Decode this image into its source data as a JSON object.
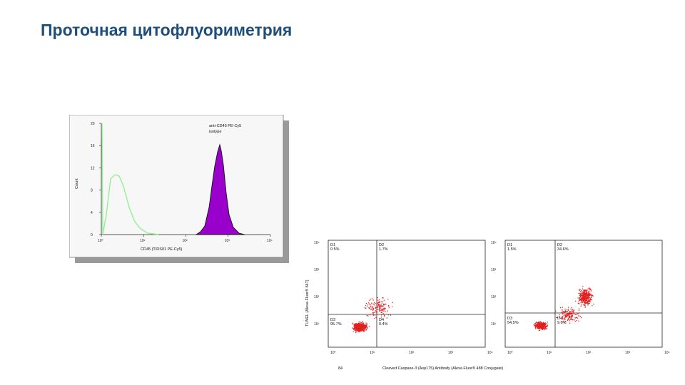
{
  "slide": {
    "title": "Проточная цитофлуориметрия",
    "page_number": "84"
  },
  "histogram": {
    "y_label": "Count",
    "y_ticks": [
      "20",
      "16",
      "12",
      "8",
      "4",
      "0"
    ],
    "x_ticks": [
      "10⁰",
      "10¹",
      "10²",
      "10³",
      "10⁴"
    ],
    "x_label": "CD45 (TIDS01 PE-Cy5)",
    "legend": [
      "anti-CD45 PE-Cy5",
      "isotype"
    ],
    "colors": {
      "filled": "#9900cc",
      "outline": "#111111",
      "control": "#88ee88",
      "frame_shadow": "#999999"
    }
  },
  "scatter": {
    "y_label": "TUNEL (Alexa Fluor® 647)",
    "x_label": "Cleaved Caspase-3 (Asp175) Antibody (Alexa Fluor® 488 Conjugate)",
    "y_ticks": [
      "10⁴",
      "10³",
      "10²",
      "10¹"
    ],
    "x_ticks": [
      "10⁰",
      "10¹",
      "10²",
      "10³",
      "10⁴"
    ],
    "panels": [
      {
        "quadrants": [
          {
            "id": "D1",
            "value": "0.5%"
          },
          {
            "id": "D2",
            "value": "1.7%"
          },
          {
            "id": "D3",
            "value": "95.7%"
          },
          {
            "id": "D4",
            "value": "0.4%"
          }
        ]
      },
      {
        "quadrants": [
          {
            "id": "D1",
            "value": "1.5%"
          },
          {
            "id": "D2",
            "value": "34.6%"
          },
          {
            "id": "D3",
            "value": "54.5%"
          },
          {
            "id": "D4",
            "value": "9.0%"
          }
        ]
      }
    ],
    "colors": {
      "dots": "#e02020",
      "axis": "#222222"
    }
  }
}
